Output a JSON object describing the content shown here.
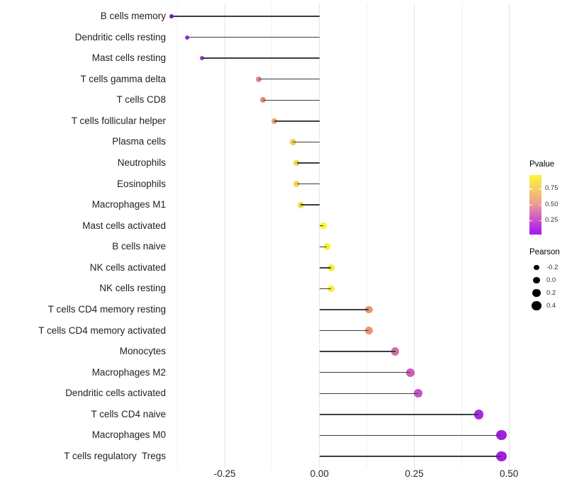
{
  "chart_data": {
    "type": "lollipop",
    "title": "",
    "xlabel": "",
    "ylabel": "",
    "xlim": [
      -0.42,
      0.55
    ],
    "baseline": 0,
    "grid": "vertical-only",
    "x_ticks": [
      {
        "label": "-0.25",
        "value": -0.25
      },
      {
        "label": "0.00",
        "value": 0.0
      },
      {
        "label": "0.25",
        "value": 0.25
      },
      {
        "label": "0.50",
        "value": 0.5
      }
    ],
    "x_grid_major": [
      -0.25,
      0.0,
      0.25,
      0.5
    ],
    "x_grid_minor": [
      -0.375,
      -0.125,
      0.125,
      0.375
    ],
    "rows": [
      {
        "label": "B cells memory",
        "pearson": -0.39,
        "pvalue_est": 0.09,
        "color": "#8b1ed3"
      },
      {
        "label": "Dendritic cells resting",
        "pearson": -0.35,
        "pvalue_est": 0.1,
        "color": "#9d2cda"
      },
      {
        "label": "Mast cells resting",
        "pearson": -0.31,
        "pvalue_est": 0.13,
        "color": "#a637d9"
      },
      {
        "label": "T cells gamma delta",
        "pearson": -0.16,
        "pvalue_est": 0.5,
        "color": "#df8a8b"
      },
      {
        "label": "T cells CD8",
        "pearson": -0.15,
        "pvalue_est": 0.51,
        "color": "#df8b86"
      },
      {
        "label": "T cells follicular helper",
        "pearson": -0.12,
        "pvalue_est": 0.62,
        "color": "#eca36f"
      },
      {
        "label": "Plasma cells",
        "pearson": -0.07,
        "pvalue_est": 0.74,
        "color": "#f2ce5c"
      },
      {
        "label": "Neutrophils",
        "pearson": -0.06,
        "pvalue_est": 0.76,
        "color": "#f4d455"
      },
      {
        "label": "Eosinophils",
        "pearson": -0.06,
        "pvalue_est": 0.77,
        "color": "#f4d750"
      },
      {
        "label": "Macrophages M1",
        "pearson": -0.05,
        "pvalue_est": 0.78,
        "color": "#f5da4d"
      },
      {
        "label": "Mast cells activated",
        "pearson": 0.01,
        "pvalue_est": 0.92,
        "color": "#faf32a"
      },
      {
        "label": "B cells naive",
        "pearson": 0.02,
        "pvalue_est": 0.91,
        "color": "#faf22e"
      },
      {
        "label": "NK cells activated",
        "pearson": 0.03,
        "pvalue_est": 0.88,
        "color": "#f7ec38"
      },
      {
        "label": "NK cells resting",
        "pearson": 0.03,
        "pvalue_est": 0.88,
        "color": "#f7ec38"
      },
      {
        "label": "T cells CD4 memory resting",
        "pearson": 0.13,
        "pvalue_est": 0.58,
        "color": "#e9966e"
      },
      {
        "label": "T cells CD4 memory activated",
        "pearson": 0.13,
        "pvalue_est": 0.58,
        "color": "#e9966e"
      },
      {
        "label": "Monocytes",
        "pearson": 0.2,
        "pvalue_est": 0.35,
        "color": "#d36fa6"
      },
      {
        "label": "Macrophages M2",
        "pearson": 0.24,
        "pvalue_est": 0.3,
        "color": "#ce5db6"
      },
      {
        "label": "Dendritic cells activated",
        "pearson": 0.26,
        "pvalue_est": 0.26,
        "color": "#c751c7"
      },
      {
        "label": "T cells CD4 naive",
        "pearson": 0.42,
        "pvalue_est": 0.11,
        "color": "#a52bdd"
      },
      {
        "label": "Macrophages M0",
        "pearson": 0.48,
        "pvalue_est": 0.05,
        "color": "#a21fe4"
      },
      {
        "label": "T cells regulatory  Tregs",
        "pearson": 0.48,
        "pvalue_est": 0.05,
        "color": "#a21fe4"
      }
    ],
    "legends": {
      "pvalue": {
        "title": "Pvalue",
        "range": [
          0.0,
          1.0
        ],
        "ticks": [
          {
            "label": "0.75",
            "value": 0.75
          },
          {
            "label": "0.50",
            "value": 0.5
          },
          {
            "label": "0.25",
            "value": 0.25
          }
        ],
        "gradient_top_to_bottom": [
          "#fcf63b",
          "#f2bc74",
          "#eaa08f",
          "#db76b4",
          "#c94fcb",
          "#a519f0"
        ]
      },
      "pearson": {
        "title": "Pearson",
        "entries": [
          {
            "label": "-0.2",
            "value": -0.2
          },
          {
            "label": "0.0",
            "value": 0.0
          },
          {
            "label": "0.2",
            "value": 0.2
          },
          {
            "label": "0.4",
            "value": 0.4
          }
        ]
      }
    }
  }
}
